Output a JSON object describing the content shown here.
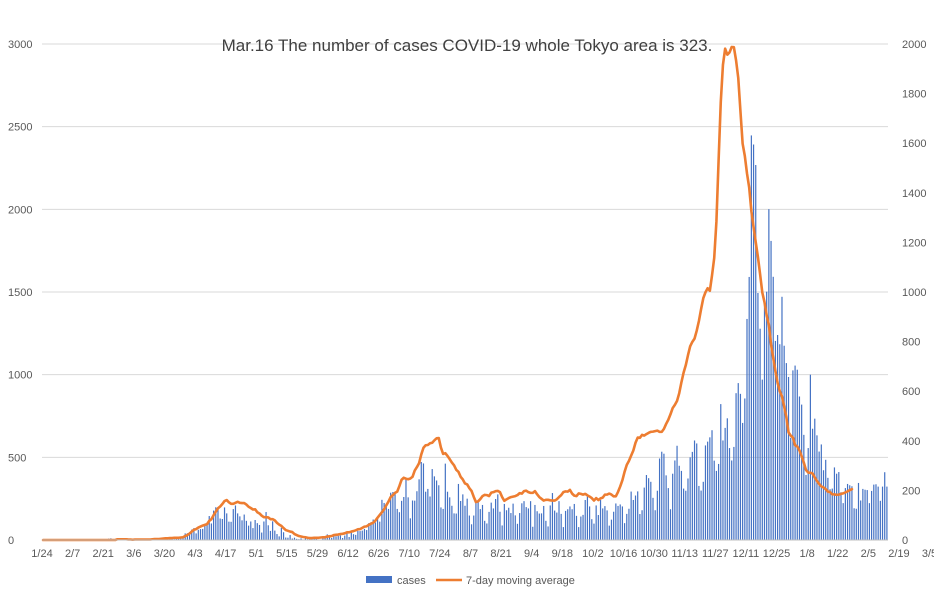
{
  "chart_data": {
    "type": "bar+line",
    "title": "Mar.16 The number of cases COVID-19 whole Tokyo area is 323.",
    "x_ticks": [
      "1/24",
      "2/7",
      "2/21",
      "3/6",
      "3/20",
      "4/3",
      "4/17",
      "5/1",
      "5/15",
      "5/29",
      "6/12",
      "6/26",
      "7/10",
      "7/24",
      "8/7",
      "8/21",
      "9/4",
      "9/18",
      "10/2",
      "10/16",
      "10/30",
      "11/13",
      "11/27",
      "12/11",
      "12/25",
      "1/8",
      "1/22",
      "2/5",
      "2/19",
      "3/5"
    ],
    "y_left": {
      "ylim": [
        0,
        3000
      ],
      "ticks": [
        0,
        500,
        1000,
        1500,
        2000,
        2500,
        3000
      ]
    },
    "y_right": {
      "ylim": [
        0,
        2000
      ],
      "ticks": [
        0,
        200,
        400,
        600,
        800,
        1000,
        1200,
        1400,
        1600,
        1800,
        2000
      ]
    },
    "grid": true,
    "legend_position": "bottom",
    "series": [
      {
        "name": "cases",
        "kind": "bar",
        "axis": "left",
        "color": "#4472c4",
        "start_date": "2020-01-24",
        "values": [
          0,
          0,
          0,
          0,
          0,
          0,
          0,
          0,
          0,
          0,
          0,
          0,
          0,
          0,
          0,
          0,
          0,
          0,
          0,
          0,
          0,
          0,
          0,
          0,
          0,
          0,
          0,
          0,
          3,
          5,
          8,
          10,
          6,
          4,
          3,
          2,
          1,
          2,
          3,
          2,
          2,
          1,
          0,
          1,
          2,
          3,
          5,
          2,
          3,
          4,
          2,
          5,
          4,
          6,
          8,
          10,
          12,
          9,
          8,
          6,
          5,
          10,
          7,
          15,
          17,
          40,
          41,
          47,
          63,
          72,
          40,
          62,
          66,
          67,
          95,
          105,
          145,
          100,
          178,
          198,
          197,
          130,
          127,
          197,
          161,
          111,
          110,
          187,
          209,
          161,
          143,
          119,
          154,
          116,
          87,
          112,
          72,
          121,
          102,
          91,
          45,
          112,
          169,
          89,
          55,
          113,
          57,
          36,
          22,
          74,
          47,
          15,
          14,
          30,
          9,
          14,
          7,
          5,
          10,
          2,
          10,
          5,
          8,
          11,
          14,
          7,
          3,
          3,
          12,
          13,
          34,
          20,
          12,
          28,
          22,
          26,
          27,
          12,
          27,
          47,
          18,
          48,
          35,
          31,
          55,
          54,
          57,
          67,
          60,
          102,
          107,
          124,
          106,
          130,
          111,
          243,
          224,
          206,
          188,
          286,
          290,
          293,
          188,
          168,
          237,
          260,
          366,
          258,
          131,
          239,
          238,
          295,
          367,
          472,
          463,
          292,
          309,
          263,
          429,
          385,
          360,
          331,
          197,
          188,
          462,
          292,
          258,
          207,
          161,
          160,
          339,
          236,
          276,
          207,
          250,
          148,
          95,
          148,
          226,
          236,
          187,
          212,
          116,
          100,
          170,
          226,
          191,
          248,
          276,
          171,
          88,
          218,
          180,
          195,
          163,
          220,
          149,
          98,
          163,
          222,
          235,
          199,
          191,
          235,
          80,
          212,
          174,
          160,
          161,
          206,
          116,
          82,
          209,
          284,
          178,
          166,
          235,
          158,
          78,
          176,
          186,
          203,
          186,
          218,
          146,
          78,
          142,
          152,
          242,
          269,
          203,
          126,
          99,
          209,
          151,
          242,
          191,
          205,
          179,
          87,
          123,
          171,
          221,
          206,
          215,
          203,
          102,
          158,
          189,
          293,
          242,
          269,
          294,
          157,
          180,
          317,
          393,
          374,
          352,
          255,
          180,
          298,
          493,
          534,
          522,
          391,
          314,
          186,
          401,
          481,
          570,
          449,
          418,
          311,
          298,
          372,
          500,
          533,
          602,
          584,
          327,
          299,
          352,
          572,
          595,
          621,
          664,
          480,
          418,
          460,
          822,
          602,
          678,
          736,
          556,
          481,
          563,
          888,
          949,
          884,
          708,
          856,
          1337,
          1591,
          2447,
          2392,
          2268,
          1494,
          1278,
          970,
          1433,
          1502,
          2001,
          1809,
          1592,
          1204,
          1240,
          1184,
          1471,
          1175,
          1070,
          986,
          618,
          1026,
          1055,
          1030,
          868,
          819,
          636,
          393,
          556,
          1000,
          673,
          734,
          633,
          535,
          578,
          422,
          485,
          376,
          307,
          311,
          439,
          401,
          411,
          289,
          223,
          314,
          339,
          331,
          325,
          192,
          189,
          345,
          239,
          309,
          304,
          302,
          223,
          297,
          335,
          337,
          323,
          237,
          323,
          410,
          323
        ]
      },
      {
        "name": "7-day moving average",
        "kind": "line",
        "axis": "right",
        "color": "#ed7d31",
        "start_date": "2020-01-24",
        "values": [
          0,
          0,
          0,
          0,
          0,
          0,
          0,
          0,
          0,
          0,
          0,
          0,
          0,
          0,
          0,
          0,
          0,
          0,
          0,
          0,
          0,
          0,
          0,
          0,
          0,
          0,
          0,
          0,
          0,
          0,
          0,
          0,
          0,
          0,
          3,
          3,
          3,
          3,
          3,
          2,
          2,
          1,
          2,
          2,
          2,
          2,
          2,
          2,
          2,
          2,
          3,
          4,
          4,
          4,
          5,
          6,
          7,
          7,
          8,
          8,
          9,
          9,
          9,
          10,
          11,
          16,
          20,
          26,
          34,
          41,
          44,
          50,
          54,
          58,
          61,
          64,
          77,
          84,
          100,
          114,
          128,
          135,
          145,
          157,
          161,
          152,
          146,
          146,
          150,
          154,
          150,
          149,
          149,
          143,
          134,
          129,
          123,
          124,
          112,
          107,
          98,
          92,
          92,
          91,
          84,
          84,
          79,
          69,
          62,
          57,
          48,
          40,
          37,
          34,
          32,
          24,
          20,
          16,
          14,
          12,
          11,
          9,
          8,
          8,
          9,
          9,
          9,
          10,
          11,
          11,
          14,
          15,
          16,
          20,
          21,
          22,
          24,
          25,
          27,
          31,
          31,
          34,
          36,
          39,
          43,
          44,
          49,
          54,
          55,
          61,
          66,
          70,
          78,
          90,
          101,
          112,
          124,
          140,
          155,
          173,
          181,
          190,
          195,
          218,
          243,
          251,
          247,
          245,
          248,
          255,
          280,
          294,
          310,
          345,
          372,
          382,
          383,
          390,
          392,
          402,
          410,
          411,
          372,
          347,
          350,
          339,
          326,
          312,
          301,
          283,
          275,
          255,
          244,
          228,
          224,
          209,
          198,
          174,
          153,
          156,
          165,
          177,
          182,
          181,
          177,
          191,
          193,
          197,
          198,
          193,
          173,
          158,
          164,
          169,
          173,
          175,
          177,
          181,
          189,
          187,
          197,
          199,
          193,
          190,
          190,
          197,
          184,
          173,
          166,
          159,
          162,
          162,
          160,
          159,
          159,
          164,
          173,
          181,
          193,
          196,
          195,
          202,
          187,
          179,
          177,
          188,
          186,
          183,
          186,
          180,
          175,
          169,
          159,
          169,
          161,
          168,
          171,
          183,
          183,
          187,
          183,
          176,
          176,
          194,
          216,
          241,
          275,
          303,
          319,
          340,
          361,
          392,
          413,
          412,
          424,
          421,
          427,
          432,
          436,
          437,
          439,
          441,
          436,
          436,
          448,
          468,
          485,
          507,
          532,
          545,
          561,
          592,
          636,
          675,
          705,
          745,
          781,
          799,
          812,
          844,
          883,
          931,
          975,
          999,
          1015,
          1005,
          1067,
          1137,
          1283,
          1529,
          1766,
          1916,
          1981,
          1957,
          1966,
          1988,
          1987,
          1934,
          1863,
          1729,
          1598,
          1549,
          1478,
          1421,
          1326,
          1262,
          1201,
          1141,
          1071,
          998,
          959,
          906,
          868,
          789,
          734,
          681,
          634,
          600,
          579,
          538,
          495,
          434,
          421,
          413,
          382,
          377,
          361,
          338,
          312,
          282,
          272,
          271,
          268,
          252,
          238,
          226,
          216,
          212,
          205,
          195,
          193,
          184,
          184,
          182,
          183,
          186,
          188,
          192,
          196,
          201,
          205
        ]
      }
    ],
    "legend": [
      "cases",
      "7-day moving average"
    ]
  }
}
